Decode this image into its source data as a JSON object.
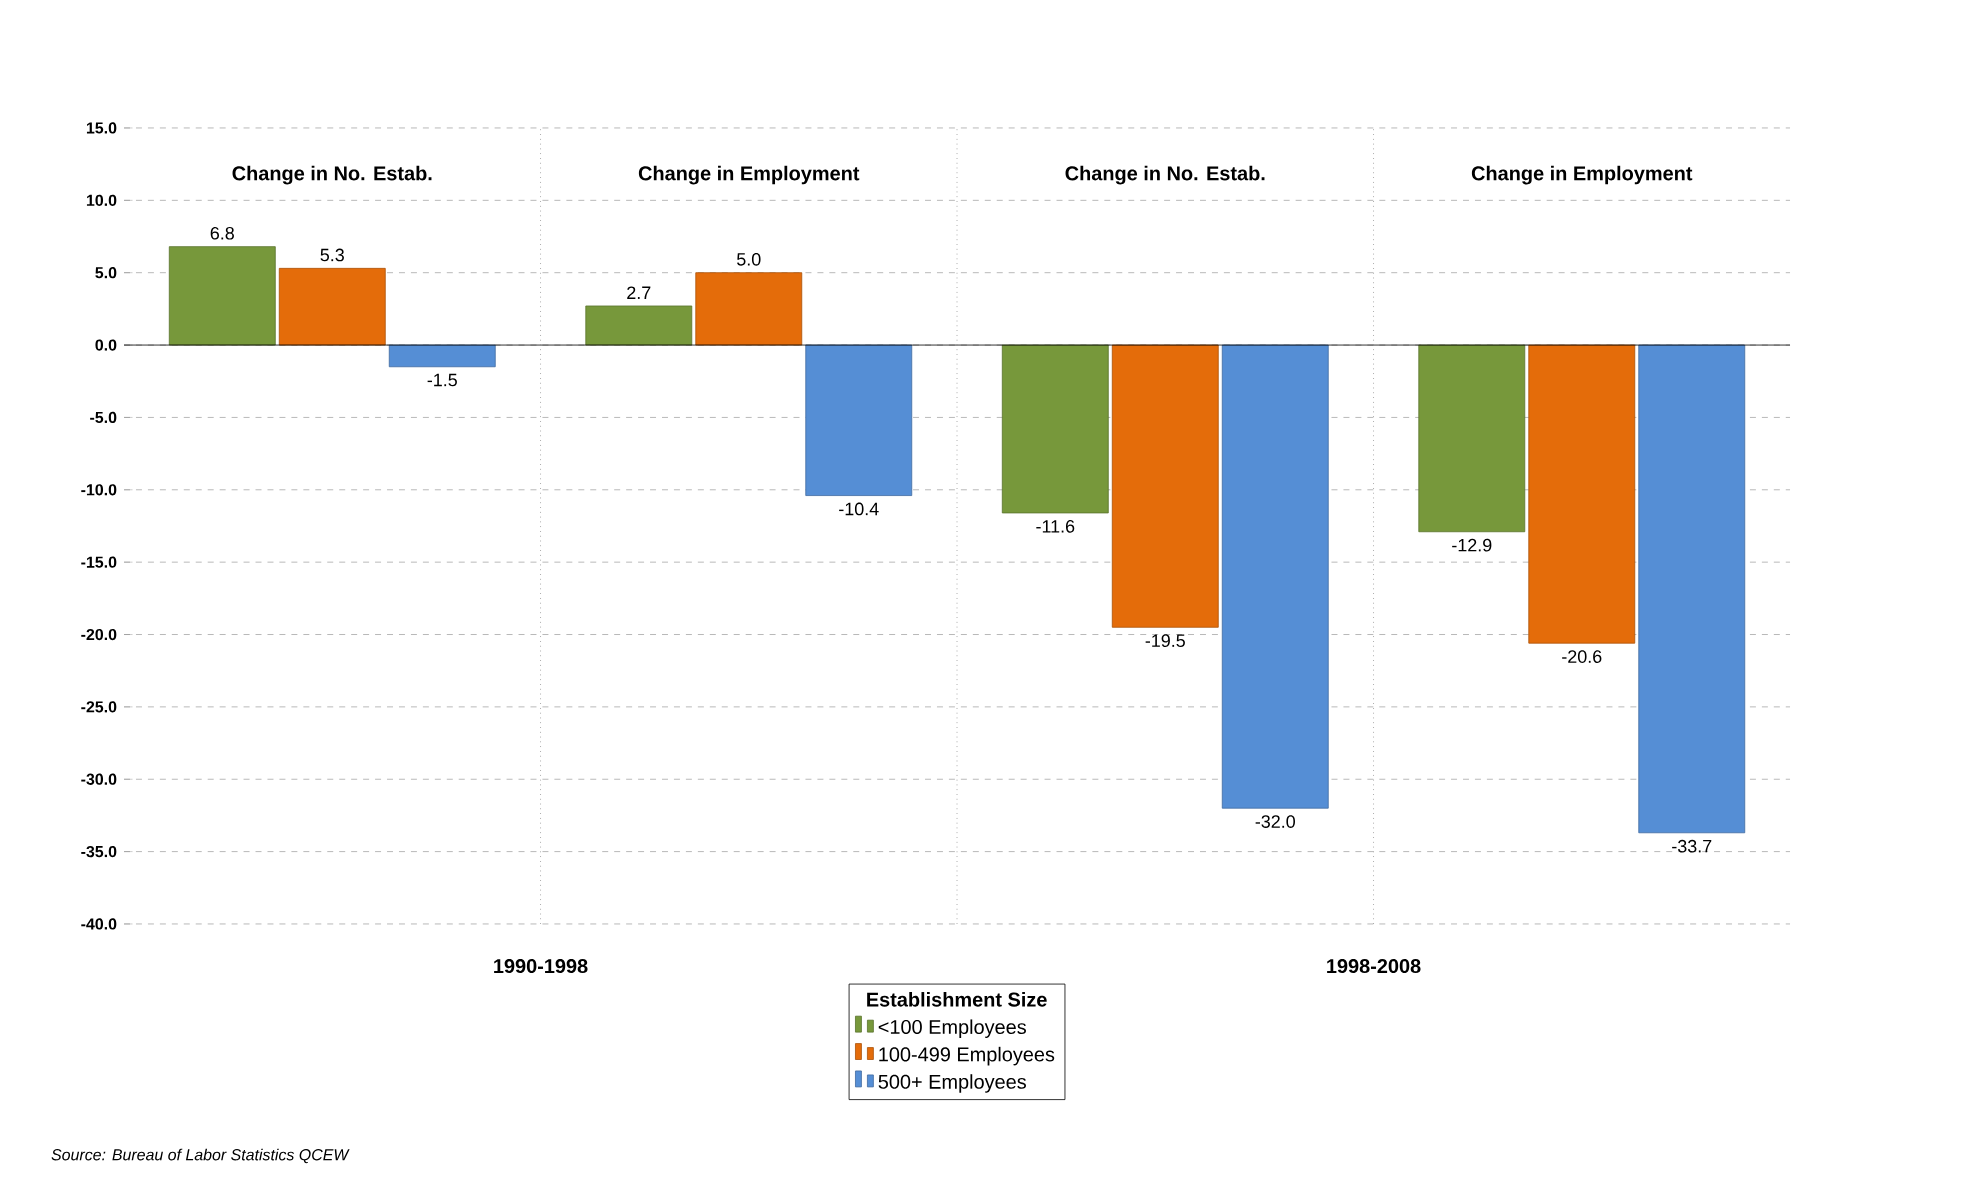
{
  "chart_data": {
    "type": "bar",
    "categories": [
      "Change in No. Estab.",
      "Change in Employment",
      "Change in No. Estab.",
      "Change in Employment"
    ],
    "series": [
      {
        "name": "<100 Employees",
        "color": "#77983b",
        "values": [
          6.8,
          2.7,
          -11.6,
          -12.9
        ],
        "value_labels": [
          "6.8",
          "2.7",
          "-11.6",
          "-12.9"
        ]
      },
      {
        "name": "100-499 Employees",
        "color": "#e46c0a",
        "values": [
          5.3,
          5.0,
          -19.5,
          -20.6
        ],
        "value_labels": [
          "5.3",
          "5.0",
          "-19.5",
          "-20.6"
        ]
      },
      {
        "name": "500+ Employees",
        "color": "#558ed5",
        "values": [
          -1.5,
          -10.4,
          -32.0,
          -33.7
        ],
        "value_labels": [
          "-1.5",
          "-10.4",
          "-32.0",
          "-33.7"
        ]
      }
    ],
    "ylim": [
      -40,
      15
    ],
    "yticks": [
      {
        "value": -40,
        "label": "-40.0"
      },
      {
        "value": -35,
        "label": "-35.0"
      },
      {
        "value": -30,
        "label": "-30.0"
      },
      {
        "value": -25,
        "label": "-25.0"
      },
      {
        "value": -20,
        "label": "-20.0"
      },
      {
        "value": -15,
        "label": "-15.0"
      },
      {
        "value": -10,
        "label": "-10.0"
      },
      {
        "value": -5,
        "label": "-5.0"
      },
      {
        "value": 0,
        "label": "0.0"
      },
      {
        "value": 5,
        "label": "5.0"
      },
      {
        "value": 10,
        "label": "10.0"
      },
      {
        "value": 15,
        "label": "15.0"
      }
    ],
    "grid": "y",
    "legend": "bottom",
    "legend_title": "Establishment Size",
    "annotations": [
      "1990-1998",
      "1998-2008",
      "Source: Bureau of Labor Statistics QCEW"
    ]
  }
}
